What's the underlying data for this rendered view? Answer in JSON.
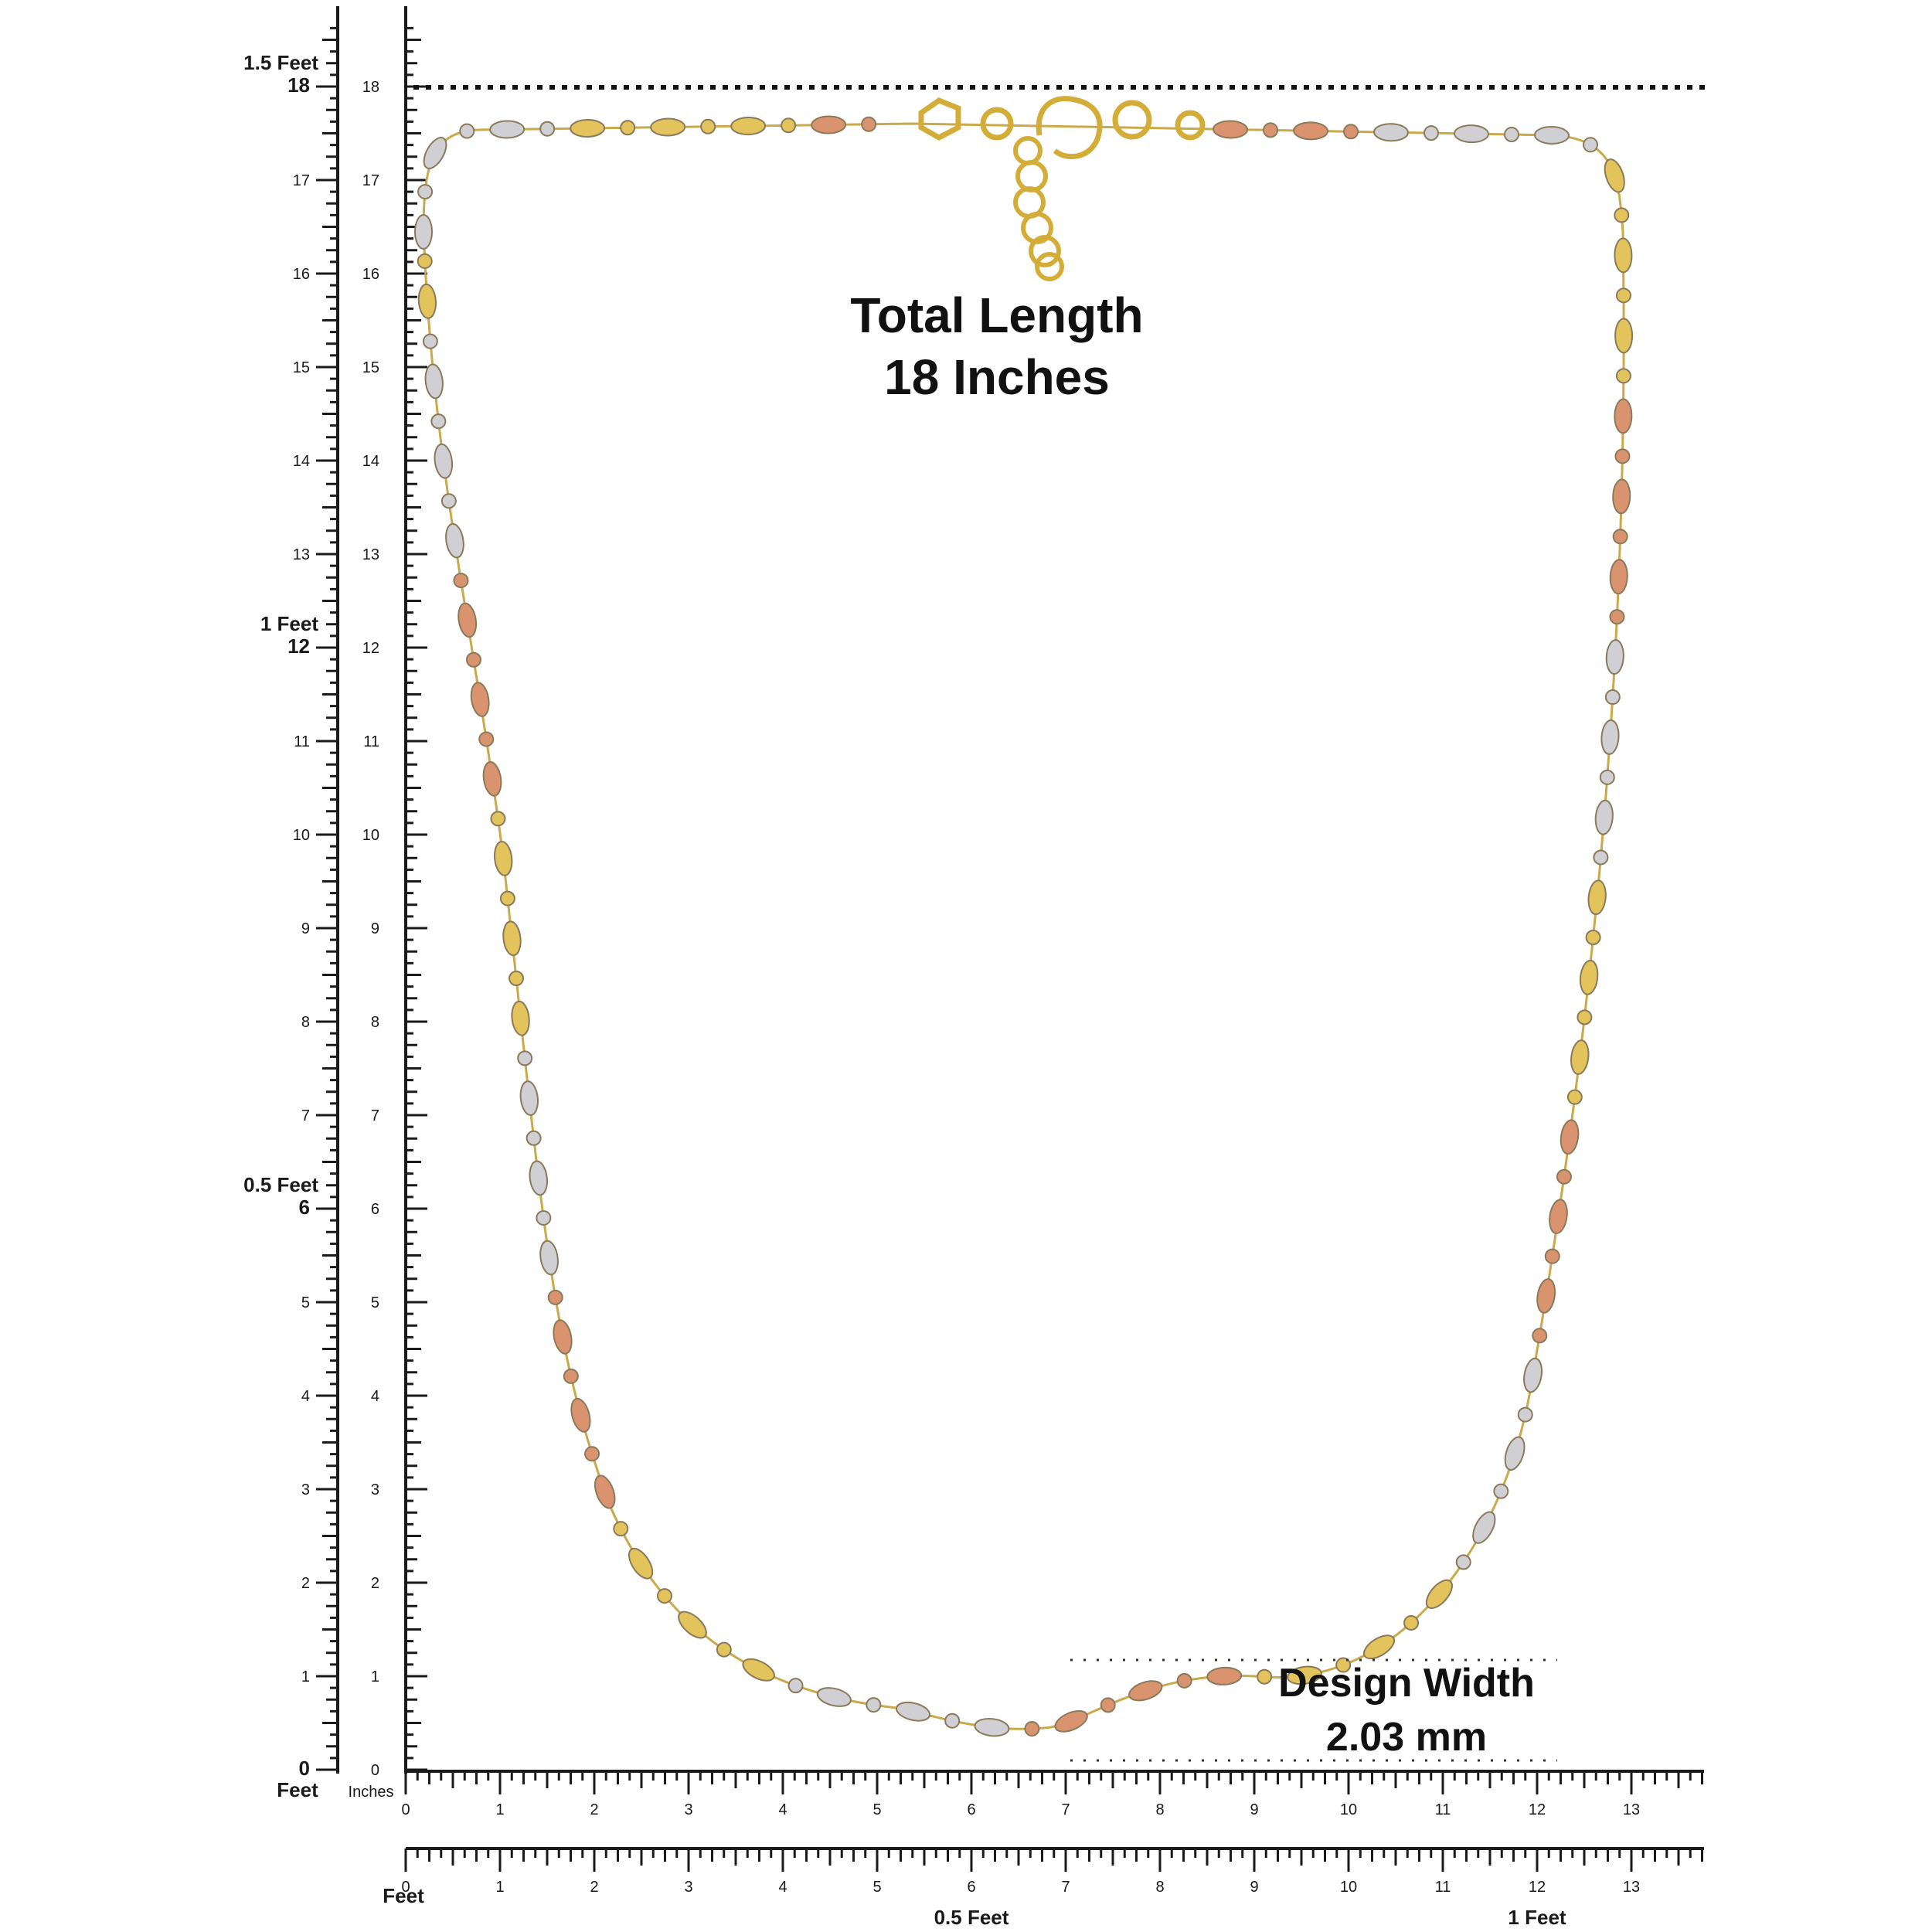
{
  "colors": {
    "ink": "#1a1a1a",
    "gold": "#e2c35c",
    "rose": "#d9946f",
    "white_gold": "#cfcfd4",
    "background": "#ffffff"
  },
  "vertical_scale": {
    "feet_labels": [
      {
        "text": "1.5 Feet",
        "inch": 18
      },
      {
        "text": "1 Feet",
        "inch": 12
      },
      {
        "text": "0.5 Feet",
        "inch": 6
      }
    ],
    "ticks_left": [
      "0",
      "1",
      "2",
      "3",
      "4",
      "5",
      "6",
      "7",
      "8",
      "9",
      "10",
      "11",
      "12",
      "13",
      "14",
      "15",
      "16",
      "17",
      "18"
    ],
    "ticks_right": [
      "0",
      "1",
      "2",
      "3",
      "4",
      "5",
      "6",
      "7",
      "8",
      "9",
      "10",
      "11",
      "12",
      "13",
      "14",
      "15",
      "16",
      "17",
      "18"
    ],
    "bottom_feet_label": "Feet",
    "bottom_inches_label": "Inches"
  },
  "horizontal_scale_top": {
    "ticks": [
      "0",
      "1",
      "2",
      "3",
      "4",
      "5",
      "6",
      "7",
      "8",
      "9",
      "10",
      "11",
      "12",
      "13"
    ]
  },
  "horizontal_scale_bottom": {
    "ticks": [
      "0",
      "1",
      "2",
      "3",
      "4",
      "5",
      "6",
      "7",
      "8",
      "9",
      "10",
      "11",
      "12",
      "13"
    ],
    "feet_label": "Feet",
    "half_feet_label": "0.5 Feet",
    "one_feet_label": "1 Feet"
  },
  "annotation_length": {
    "line1": "Total Length",
    "line2": "18 Inches"
  },
  "annotation_width": {
    "line1": "Design Width",
    "line2": "2.03 mm"
  }
}
